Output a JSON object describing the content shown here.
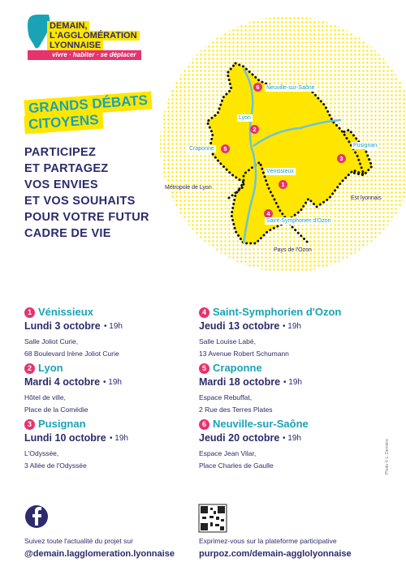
{
  "logo": {
    "lines": [
      "DEMAIN,",
      "L'AGGLOMÉRATION",
      "LYONNAISE"
    ],
    "tagline": "vivre · habiter · se déplacer"
  },
  "title": [
    "GRANDS DÉBATS",
    "CITOYENS"
  ],
  "intro": [
    "PARTICIPEZ",
    "ET PARTAGEZ",
    "VOS ENVIES",
    "ET VOS SOUHAITS",
    "POUR VOTRE FUTUR",
    "CADRE DE VIE"
  ],
  "map": {
    "markers": [
      {
        "number": "6",
        "label": "Neuville-sur-Saône"
      },
      {
        "number": "2",
        "label": "Lyon"
      },
      {
        "number": "5",
        "label": "Craponne"
      },
      {
        "number": "1",
        "label": "Vénissieux"
      },
      {
        "number": "4",
        "label": "Saint-Symphorien d'Ozon"
      },
      {
        "number": "3",
        "label": "Pusignan"
      }
    ],
    "regions": [
      "Métropole de Lyon",
      "Est lyonnais",
      "Pays de l'Ozon"
    ]
  },
  "events": [
    {
      "number": "1",
      "city": "Vénissieux",
      "date": "Lundi 3 octobre",
      "time": "• 19h",
      "venue": "Salle Joliot Curie,",
      "address": "68 Boulevard Irène Joliot Curie"
    },
    {
      "number": "2",
      "city": "Lyon",
      "date": "Mardi 4 octobre",
      "time": "• 19h",
      "venue": "Hôtel de ville,",
      "address": "Place de la Comédie"
    },
    {
      "number": "3",
      "city": "Pusignan",
      "date": "Lundi 10 octobre",
      "time": "• 19h",
      "venue": "L'Odyssée,",
      "address": "3 Allée de l'Odyssée"
    },
    {
      "number": "4",
      "city": "Saint-Symphorien d'Ozon",
      "date": "Jeudi 13 octobre",
      "time": "• 19h",
      "venue": "Salle Louise Labé,",
      "address": "13 Avenue Robert Schumann"
    },
    {
      "number": "5",
      "city": "Craponne",
      "date": "Mardi 18 octobre",
      "time": "• 19h",
      "venue": "Espace Rebuffat,",
      "address": "2 Rue des Terres Plates"
    },
    {
      "number": "6",
      "city": "Neuville-sur-Saône",
      "date": "Jeudi 20 octobre",
      "time": "• 19h",
      "venue": "Espace Jean Vilar,",
      "address": "Place Charles de Gaulle"
    }
  ],
  "footer": {
    "follow": "Suivez toute l'actualité du projet sur",
    "handle": "@demain.lagglomeration.lyonnaise",
    "express": "Exprimez-vous sur la plateforme participative",
    "url": "purpoz.com/demain-agglolyonnaise"
  },
  "credit": "Photo © L. Demière"
}
